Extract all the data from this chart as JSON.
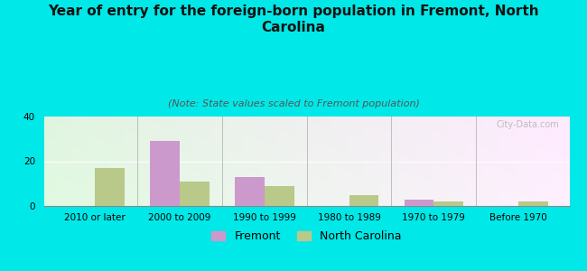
{
  "title": "Year of entry for the foreign-born population in Fremont, North\nCarolina",
  "subtitle": "(Note: State values scaled to Fremont population)",
  "categories": [
    "2010 or later",
    "2000 to 2009",
    "1990 to 1999",
    "1980 to 1989",
    "1970 to 1979",
    "Before 1970"
  ],
  "fremont_values": [
    0,
    29,
    13,
    0,
    3,
    0
  ],
  "nc_values": [
    17,
    11,
    9,
    5,
    2,
    2
  ],
  "fremont_color": "#cc99cc",
  "nc_color": "#b8c98a",
  "ylim": [
    0,
    40
  ],
  "yticks": [
    0,
    20,
    40
  ],
  "background_color": "#00e8e8",
  "bar_width": 0.35,
  "legend_fremont": "Fremont",
  "legend_nc": "North Carolina",
  "title_fontsize": 11,
  "subtitle_fontsize": 8,
  "tick_fontsize": 7.5,
  "legend_fontsize": 9,
  "watermark": "City-Data.com"
}
